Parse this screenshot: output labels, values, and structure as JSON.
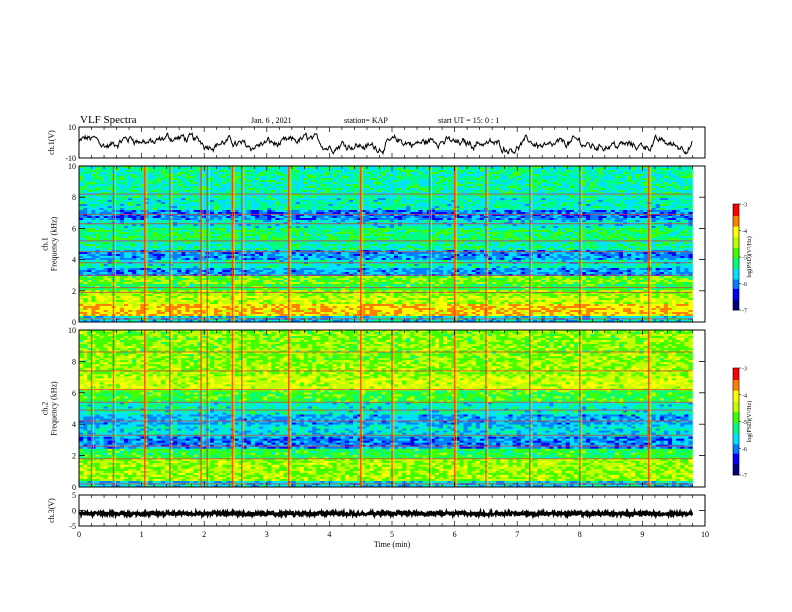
{
  "header": {
    "title": "VLF Spectra",
    "date": "Jan. 6 , 2021",
    "station": "station= KAP",
    "start": "start UT =  15: 0  : 1"
  },
  "colors": {
    "colormap": [
      "#000080",
      "#0000ff",
      "#0080ff",
      "#00e0ff",
      "#00ff80",
      "#40ff00",
      "#c0ff00",
      "#ffff00",
      "#ff8000",
      "#ff0000",
      "#ffffff"
    ]
  },
  "chart_data": [
    {
      "type": "line",
      "name": "ch1-waveform",
      "ylabel": "ch.1(V)",
      "ylim": [
        -10,
        10
      ],
      "y_ticks": [
        "10",
        "-10"
      ],
      "x_range": [
        0,
        9.8
      ],
      "baseline": 0,
      "amplitude": 4.5
    },
    {
      "type": "heatmap",
      "name": "ch1-spectrogram",
      "ylabel": "ch.1\nFrequency (kHz)",
      "ylim": [
        0,
        10
      ],
      "y_ticks": [
        "0",
        "2",
        "4",
        "6",
        "8",
        "10"
      ],
      "x_range": [
        0,
        9.8
      ],
      "colorbar": {
        "label": "log(PSD)(V²/Hz)",
        "range": [
          -7,
          -3
        ],
        "ticks": [
          "-3",
          "-4",
          "-5",
          "-6",
          "-7"
        ]
      },
      "bands": [
        {
          "f0": 0,
          "f1": 0.4,
          "level": 0.35
        },
        {
          "f0": 0.4,
          "f1": 1.2,
          "level": 0.78
        },
        {
          "f0": 1.2,
          "f1": 1.7,
          "level": 0.66
        },
        {
          "f0": 1.7,
          "f1": 2.1,
          "level": 0.62
        },
        {
          "f0": 2.1,
          "f1": 2.4,
          "level": 0.5
        },
        {
          "f0": 2.4,
          "f1": 2.9,
          "level": 0.58
        },
        {
          "f0": 2.9,
          "f1": 3.4,
          "level": 0.28
        },
        {
          "f0": 3.4,
          "f1": 4.0,
          "level": 0.4
        },
        {
          "f0": 4.0,
          "f1": 4.6,
          "level": 0.28
        },
        {
          "f0": 4.6,
          "f1": 5.3,
          "level": 0.42
        },
        {
          "f0": 5.3,
          "f1": 6.0,
          "level": 0.48
        },
        {
          "f0": 6.0,
          "f1": 6.6,
          "level": 0.38
        },
        {
          "f0": 6.6,
          "f1": 7.2,
          "level": 0.25
        },
        {
          "f0": 7.2,
          "f1": 8.0,
          "level": 0.4
        },
        {
          "f0": 8.0,
          "f1": 10.0,
          "level": 0.42
        }
      ],
      "lines_khz": [
        0.2,
        1.9,
        2.2,
        3.0,
        3.8,
        4.5,
        5.2,
        6.3,
        6.9,
        8.2
      ],
      "bursts_min": [
        0.55,
        1.05,
        1.45,
        1.95,
        2.05,
        2.45,
        2.6,
        3.35,
        4.5,
        5.6,
        6.0,
        6.5,
        7.2,
        8.0,
        9.1
      ]
    },
    {
      "type": "heatmap",
      "name": "ch2-spectrogram",
      "ylabel": "ch.2\nFrequency (kHz)",
      "ylim": [
        0,
        10
      ],
      "y_ticks": [
        "0",
        "2",
        "4",
        "6",
        "8",
        "10"
      ],
      "x_range": [
        0,
        9.8
      ],
      "colorbar": {
        "label": "log(PSD)(V²/Hz)",
        "range": [
          -7,
          -3
        ],
        "ticks": [
          "-3",
          "-4",
          "-5",
          "-6",
          "-7"
        ]
      },
      "bands": [
        {
          "f0": 0,
          "f1": 0.4,
          "level": 0.35
        },
        {
          "f0": 0.4,
          "f1": 1.8,
          "level": 0.62
        },
        {
          "f0": 1.8,
          "f1": 2.4,
          "level": 0.5
        },
        {
          "f0": 2.4,
          "f1": 3.2,
          "level": 0.26
        },
        {
          "f0": 3.2,
          "f1": 4.0,
          "level": 0.36
        },
        {
          "f0": 4.0,
          "f1": 4.6,
          "level": 0.3
        },
        {
          "f0": 4.6,
          "f1": 5.4,
          "level": 0.4
        },
        {
          "f0": 5.4,
          "f1": 6.2,
          "level": 0.52
        },
        {
          "f0": 6.2,
          "f1": 7.0,
          "level": 0.68
        },
        {
          "f0": 7.0,
          "f1": 8.0,
          "level": 0.62
        },
        {
          "f0": 8.0,
          "f1": 10.0,
          "level": 0.6
        }
      ],
      "lines_khz": [
        0.2,
        1.8,
        2.6,
        3.3,
        4.2,
        4.9,
        5.4,
        6.2,
        7.4,
        8.6
      ],
      "bursts_min": [
        0.2,
        0.55,
        1.05,
        1.45,
        1.95,
        2.05,
        2.45,
        2.6,
        3.35,
        4.5,
        5.0,
        5.6,
        6.0,
        6.5,
        7.2,
        8.0,
        9.1
      ]
    },
    {
      "type": "line",
      "name": "ch3-waveform",
      "ylabel": "ch.3(V)",
      "ylim": [
        -5,
        5
      ],
      "y_ticks": [
        "5",
        "0",
        "-5"
      ],
      "x_range": [
        0,
        9.8
      ],
      "baseline": -1.0,
      "amplitude": 0.6
    }
  ],
  "xaxis": {
    "label": "Time (min)",
    "ticks": [
      "0",
      "1",
      "2",
      "3",
      "4",
      "5",
      "6",
      "7",
      "8",
      "9",
      "10"
    ],
    "xlim": [
      0,
      10
    ]
  }
}
